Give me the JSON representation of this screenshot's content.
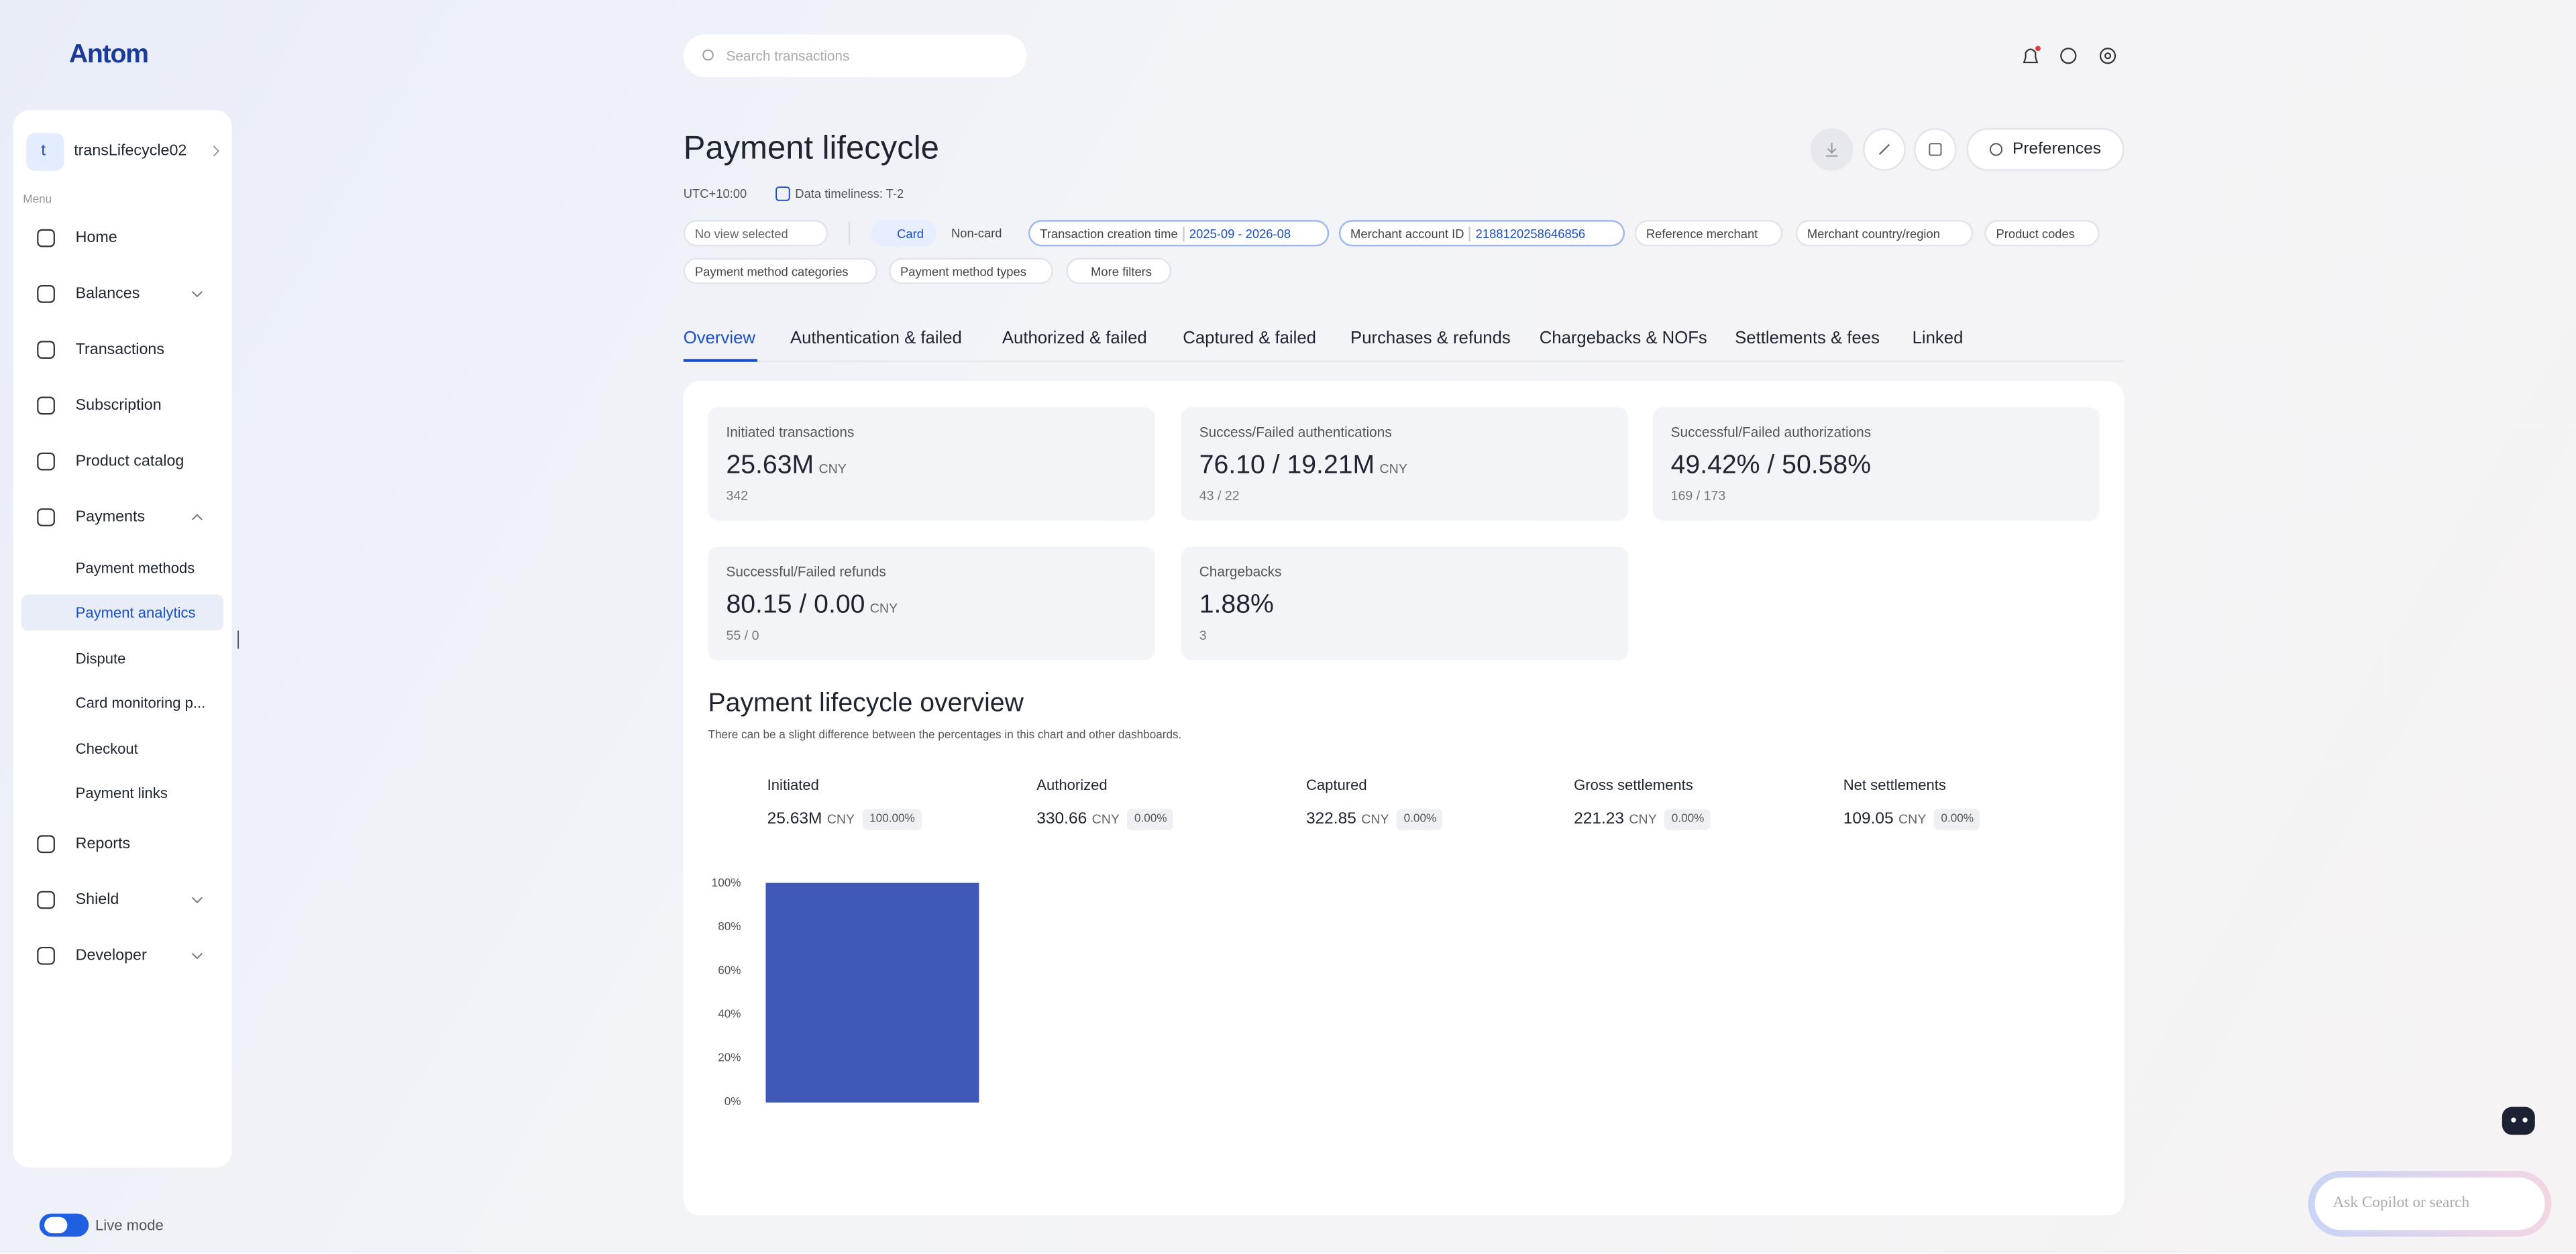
{
  "brand": "Antom",
  "search": {
    "placeholder": "Search transactions"
  },
  "sidebar": {
    "account": {
      "initial": "t",
      "name": "transLifecycle02"
    },
    "menu_label": "Menu",
    "items": [
      "Home",
      "Balances",
      "Transactions",
      "Subscription",
      "Product catalog",
      "Payments"
    ],
    "payments_sub": [
      "Payment methods",
      "Payment analytics",
      "Dispute",
      "Card monitoring p...",
      "Checkout",
      "Payment links"
    ],
    "items_after": [
      "Reports",
      "Shield",
      "Developer"
    ],
    "live_mode": "Live mode"
  },
  "header": {
    "title": "Payment lifecycle",
    "timezone": "UTC+10:00",
    "timeliness": "Data timeliness: T-2",
    "preferences": "Preferences"
  },
  "filters": {
    "view": "No view selected",
    "card": "Card",
    "non_card": "Non-card",
    "time_label": "Transaction creation time",
    "time_value": "2025-09 - 2026-08",
    "merchant_label": "Merchant account ID",
    "merchant_value": "2188120258646856",
    "others": [
      "Reference merchant",
      "Merchant country/region",
      "Product codes",
      "Payment method categories",
      "Payment method types"
    ],
    "more": "More filters"
  },
  "tabs": [
    "Overview",
    "Authentication & failed",
    "Authorized & failed",
    "Captured & failed",
    "Purchases & refunds",
    "Chargebacks & NOFs",
    "Settlements & fees",
    "Linked"
  ],
  "metrics": [
    {
      "label": "Initiated transactions",
      "value": "25.63M",
      "unit": "CNY",
      "sub": "342"
    },
    {
      "label": "Success/Failed authentications",
      "value": "76.10 / 19.21M",
      "unit": "CNY",
      "sub": "43 / 22"
    },
    {
      "label": "Successful/Failed authorizations",
      "value": "49.42% / 50.58%",
      "sub": "169 / 173"
    },
    {
      "label": "Successful/Failed refunds",
      "value": "80.15 / 0.00",
      "unit": "CNY",
      "sub": "55 / 0"
    },
    {
      "label": "Chargebacks",
      "value": "1.88%",
      "sub": "3"
    }
  ],
  "overview": {
    "title": "Payment lifecycle overview",
    "note": "There can be a slight difference between the percentages in this chart and other dashboards.",
    "stages": [
      {
        "name": "Initiated",
        "amount": "25.63M",
        "unit": "CNY",
        "percent": "100.00%"
      },
      {
        "name": "Authorized",
        "amount": "330.66",
        "unit": "CNY",
        "percent": "0.00%"
      },
      {
        "name": "Captured",
        "amount": "322.85",
        "unit": "CNY",
        "percent": "0.00%"
      },
      {
        "name": "Gross settlements",
        "amount": "221.23",
        "unit": "CNY",
        "percent": "0.00%"
      },
      {
        "name": "Net settlements",
        "amount": "109.05",
        "unit": "CNY",
        "percent": "0.00%"
      }
    ]
  },
  "chart_data": {
    "type": "bar",
    "values": [
      100,
      0,
      0,
      0,
      0
    ],
    "color": "#4059b8",
    "ylim": [
      0,
      105
    ],
    "yticks": [
      {
        "value": 0,
        "label": "0%"
      },
      {
        "value": 20,
        "label": "20%"
      },
      {
        "value": 40,
        "label": "40%"
      },
      {
        "value": 60,
        "label": "60%"
      },
      {
        "value": 80,
        "label": "80%"
      },
      {
        "value": 100,
        "label": "100%"
      }
    ]
  },
  "copilot": "Ask Copilot or search"
}
